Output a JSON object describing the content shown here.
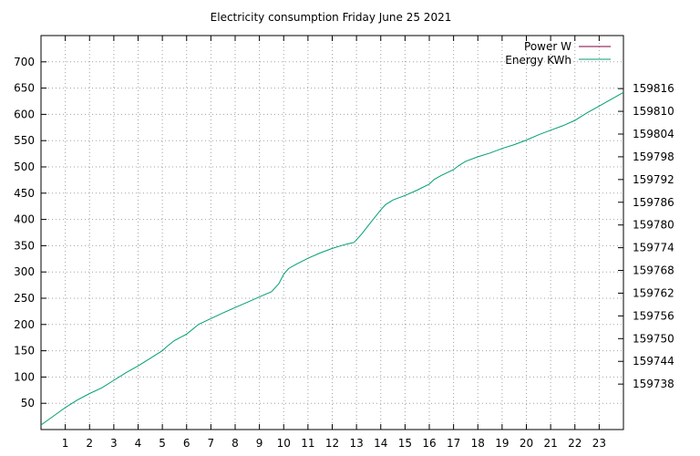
{
  "chart_data": {
    "type": "line",
    "title": "Electricity consumption Friday June 25 2021",
    "xlabel": "",
    "ylabel": "",
    "xlim": [
      0,
      24
    ],
    "ylim": [
      0,
      750
    ],
    "y2lim": [
      159726,
      159830
    ],
    "grid": true,
    "legend_position": "top-right",
    "x_ticks": [
      1,
      2,
      3,
      4,
      5,
      6,
      7,
      8,
      9,
      10,
      11,
      12,
      13,
      14,
      15,
      16,
      17,
      18,
      19,
      20,
      21,
      22,
      23
    ],
    "y_ticks": [
      50,
      100,
      150,
      200,
      250,
      300,
      350,
      400,
      450,
      500,
      550,
      600,
      650,
      700
    ],
    "y2_ticks": [
      159738,
      159744,
      159750,
      159756,
      159762,
      159768,
      159774,
      159780,
      159786,
      159792,
      159798,
      159804,
      159810,
      159816
    ],
    "series": [
      {
        "name": "Power W",
        "color": "#7f0041",
        "axis": "y",
        "x": [],
        "y": []
      },
      {
        "name": "Energy KWh",
        "color": "#009e73",
        "axis": "y2",
        "x": [
          0,
          0.5,
          1,
          1.5,
          2,
          2.5,
          3,
          3.5,
          4,
          4.5,
          5,
          5.2,
          5.5,
          6,
          6.5,
          7,
          7.5,
          8,
          8.5,
          9,
          9.5,
          9.8,
          10,
          10.2,
          10.5,
          11,
          11.5,
          12,
          12.5,
          12.9,
          13.2,
          13.6,
          14,
          14.2,
          14.5,
          15,
          15.5,
          16,
          16.2,
          16.5,
          17,
          17.2,
          17.5,
          18,
          18.5,
          19,
          19.5,
          20,
          20.5,
          21,
          21.5,
          22,
          22.5,
          23,
          23.5,
          24
        ],
        "y": [
          159727.2,
          159729.5,
          159731.8,
          159733.8,
          159735.5,
          159737,
          159739,
          159741,
          159742.8,
          159744.8,
          159746.8,
          159748,
          159749.5,
          159751.2,
          159753.8,
          159755.3,
          159756.8,
          159758.2,
          159759.6,
          159761,
          159762.4,
          159764.5,
          159767,
          159768.5,
          159769.6,
          159771.2,
          159772.6,
          159773.8,
          159774.8,
          159775.4,
          159777.5,
          159780.8,
          159784,
          159785.4,
          159786.6,
          159787.8,
          159789.2,
          159790.8,
          159792,
          159793.1,
          159794.6,
          159795.6,
          159796.8,
          159798,
          159799,
          159800.2,
          159801.2,
          159802.4,
          159803.8,
          159805,
          159806.2,
          159807.6,
          159809.6,
          159811.4,
          159813.2,
          159815
        ]
      }
    ]
  }
}
